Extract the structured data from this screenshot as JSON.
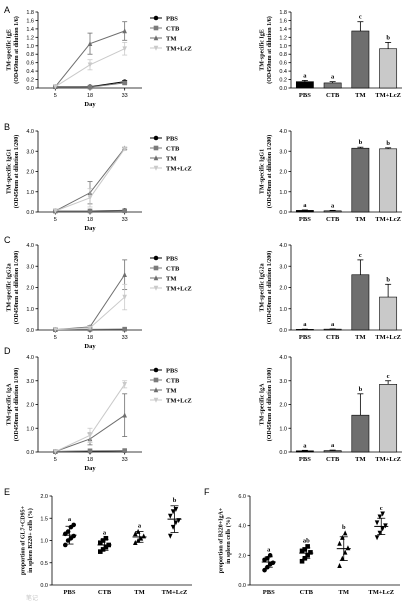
{
  "colors": {
    "PBS": "#000000",
    "CTB": "#7a7a7a",
    "TM": "#6e6e6e",
    "TM+LcZ": "#c9c9c9"
  },
  "watermark": "笔记",
  "chart_data": [
    {
      "id": "A-line",
      "panel": "A",
      "type": "line",
      "x": [
        5,
        18,
        33
      ],
      "xlabel": "Day",
      "ylabel": [
        "TM-specific IgE",
        "(OD450nm at dilution 1/6)"
      ],
      "ylim": [
        0,
        1.8
      ],
      "yticks": [
        "0.0",
        "0.2",
        "0.4",
        "0.6",
        "0.8",
        "1.0",
        "1.2",
        "1.4",
        "1.6",
        "1.8"
      ],
      "legend": "right",
      "series": [
        {
          "name": "PBS",
          "marker": "circle",
          "values": [
            0.03,
            0.03,
            0.15
          ],
          "err": [
            0.01,
            0.01,
            0.03
          ]
        },
        {
          "name": "CTB",
          "marker": "square",
          "values": [
            0.03,
            0.02,
            0.12
          ],
          "err": [
            0.01,
            0.01,
            0.03
          ]
        },
        {
          "name": "TM",
          "marker": "triangle",
          "values": [
            0.03,
            1.05,
            1.35
          ],
          "err": [
            0.01,
            0.25,
            0.22
          ]
        },
        {
          "name": "TM+LcZ",
          "marker": "triangle-down",
          "values": [
            0.03,
            0.55,
            0.93
          ],
          "err": [
            0.01,
            0.12,
            0.15
          ]
        }
      ]
    },
    {
      "id": "A-bar",
      "panel": "A",
      "type": "bar",
      "categories": [
        "PBS",
        "CTB",
        "TM",
        "TM+LcZ"
      ],
      "ylabel": [
        "TM-specific IgE",
        "(OD450nm at dilution 1/6)"
      ],
      "ylim": [
        0,
        1.8
      ],
      "yticks": [
        "0.0",
        "0.2",
        "0.4",
        "0.6",
        "0.8",
        "1.0",
        "1.2",
        "1.4",
        "1.6",
        "1.8"
      ],
      "values": [
        0.15,
        0.12,
        1.35,
        0.93
      ],
      "err": [
        0.03,
        0.03,
        0.22,
        0.15
      ],
      "sig": [
        "a",
        "a",
        "c",
        "b"
      ]
    },
    {
      "id": "B-line",
      "panel": "B",
      "type": "line",
      "x": [
        5,
        18,
        33
      ],
      "xlabel": "Day",
      "ylabel": [
        "TM-specific IgG1",
        "(OD450nm at dilution 1/200)"
      ],
      "ylim": [
        0,
        4
      ],
      "yticks": [
        "0.0",
        "1.0",
        "2.0",
        "3.0",
        "4.0"
      ],
      "legend": "right",
      "series": [
        {
          "name": "PBS",
          "marker": "circle",
          "values": [
            0.05,
            0.05,
            0.08
          ],
          "err": [
            0.02,
            0.02,
            0.02
          ]
        },
        {
          "name": "CTB",
          "marker": "square",
          "values": [
            0.05,
            0.05,
            0.06
          ],
          "err": [
            0.02,
            0.02,
            0.02
          ]
        },
        {
          "name": "TM",
          "marker": "triangle",
          "values": [
            0.05,
            0.95,
            3.15
          ],
          "err": [
            0.02,
            0.55,
            0.05
          ]
        },
        {
          "name": "TM+LcZ",
          "marker": "triangle-down",
          "values": [
            0.05,
            0.7,
            3.12
          ],
          "err": [
            0.02,
            0.45,
            0.05
          ]
        }
      ]
    },
    {
      "id": "B-bar",
      "panel": "B",
      "type": "bar",
      "categories": [
        "PBS",
        "CTB",
        "TM",
        "TM+LcZ"
      ],
      "ylabel": [
        "TM-specific IgG1",
        "(OD450nm at dilution 1/200)"
      ],
      "ylim": [
        0,
        4
      ],
      "yticks": [
        "0.0",
        "1.0",
        "2.0",
        "3.0",
        "4.0"
      ],
      "values": [
        0.08,
        0.06,
        3.15,
        3.12
      ],
      "err": [
        0.02,
        0.02,
        0.05,
        0.05
      ],
      "sig": [
        "a",
        "a",
        "b",
        "b"
      ]
    },
    {
      "id": "C-line",
      "panel": "C",
      "type": "line",
      "x": [
        5,
        18,
        33
      ],
      "xlabel": "Day",
      "ylabel": [
        "TM-specific IgG2a",
        "(OD450nm at dilution 1/200)"
      ],
      "ylim": [
        0,
        4
      ],
      "yticks": [
        "0.0",
        "1.0",
        "2.0",
        "3.0",
        "4.0"
      ],
      "legend": "right",
      "series": [
        {
          "name": "PBS",
          "marker": "circle",
          "values": [
            0.02,
            0.02,
            0.03
          ],
          "err": [
            0.01,
            0.01,
            0.01
          ]
        },
        {
          "name": "CTB",
          "marker": "square",
          "values": [
            0.02,
            0.03,
            0.04
          ],
          "err": [
            0.01,
            0.01,
            0.01
          ]
        },
        {
          "name": "TM",
          "marker": "triangle",
          "values": [
            0.02,
            0.15,
            2.6
          ],
          "err": [
            0.01,
            0.06,
            0.7
          ]
        },
        {
          "name": "TM+LcZ",
          "marker": "triangle-down",
          "values": [
            0.02,
            0.1,
            1.55
          ],
          "err": [
            0.01,
            0.05,
            0.6
          ]
        }
      ]
    },
    {
      "id": "C-bar",
      "panel": "C",
      "type": "bar",
      "categories": [
        "PBS",
        "CTB",
        "TM",
        "TM+LcZ"
      ],
      "ylabel": [
        "TM-specific IgG2a",
        "(OD450nm at dilution 1/200)"
      ],
      "ylim": [
        0,
        4
      ],
      "yticks": [
        "0.0",
        "1.0",
        "2.0",
        "3.0",
        "4.0"
      ],
      "values": [
        0.03,
        0.04,
        2.6,
        1.55
      ],
      "err": [
        0.01,
        0.01,
        0.7,
        0.6
      ],
      "sig": [
        "a",
        "a",
        "c",
        "b"
      ]
    },
    {
      "id": "D-line",
      "panel": "D",
      "type": "line",
      "x": [
        5,
        18,
        33
      ],
      "xlabel": "Day",
      "ylabel": [
        "TM-specific IgA",
        "(OD450nm at dilution 1/100)"
      ],
      "ylim": [
        0,
        4
      ],
      "yticks": [
        "0.0",
        "1.0",
        "2.0",
        "3.0",
        "4.0"
      ],
      "legend": "right",
      "series": [
        {
          "name": "PBS",
          "marker": "circle",
          "values": [
            0.02,
            0.03,
            0.05
          ],
          "err": [
            0.01,
            0.01,
            0.02
          ]
        },
        {
          "name": "CTB",
          "marker": "square",
          "values": [
            0.02,
            0.05,
            0.06
          ],
          "err": [
            0.01,
            0.02,
            0.02
          ]
        },
        {
          "name": "TM",
          "marker": "triangle",
          "values": [
            0.02,
            0.55,
            1.55
          ],
          "err": [
            0.01,
            0.25,
            0.9
          ]
        },
        {
          "name": "TM+LcZ",
          "marker": "triangle-down",
          "values": [
            0.02,
            0.7,
            2.85
          ],
          "err": [
            0.01,
            0.3,
            0.15
          ]
        }
      ]
    },
    {
      "id": "D-bar",
      "panel": "D",
      "type": "bar",
      "categories": [
        "PBS",
        "CTB",
        "TM",
        "TM+LcZ"
      ],
      "ylabel": [
        "TM-specific IgA",
        "(OD450nm at dilution 1/100)"
      ],
      "ylim": [
        0,
        4
      ],
      "yticks": [
        "0.0",
        "1.0",
        "2.0",
        "3.0",
        "4.0"
      ],
      "values": [
        0.05,
        0.06,
        1.55,
        2.85
      ],
      "err": [
        0.02,
        0.02,
        0.9,
        0.15
      ],
      "sig": [
        "a",
        "a",
        "b",
        "c"
      ]
    },
    {
      "id": "E",
      "panel": "E",
      "type": "scatter",
      "categories": [
        "PBS",
        "CTB",
        "TM",
        "TM+LcZ"
      ],
      "ylabel": [
        "proportion of GL7+CD95+",
        "in spleen B220+ cells (%)"
      ],
      "ylim": [
        0,
        2.0
      ],
      "yticks": [
        "0.0",
        "0.5",
        "1.0",
        "1.5",
        "2.0"
      ],
      "points": [
        [
          0.9,
          1.0,
          1.05,
          1.1,
          1.15,
          1.2,
          1.3,
          1.35
        ],
        [
          0.75,
          0.8,
          0.85,
          0.9,
          0.95,
          1.0,
          1.05
        ],
        [
          0.95,
          1.0,
          1.05,
          1.1,
          1.15,
          1.2
        ],
        [
          1.1,
          1.3,
          1.4,
          1.45,
          1.55,
          1.65,
          1.7
        ]
      ],
      "mean": [
        1.12,
        0.9,
        1.08,
        1.48
      ],
      "sd": [
        0.2,
        0.12,
        0.12,
        0.3
      ],
      "sig": [
        "a",
        "a",
        "a",
        "b"
      ]
    },
    {
      "id": "F",
      "panel": "F",
      "type": "scatter",
      "categories": [
        "PBS",
        "CTB",
        "TM",
        "TM+LcZ"
      ],
      "ylabel": [
        "proportion of B220+IgA+",
        "in spleen cells (%)"
      ],
      "ylim": [
        0,
        6.0
      ],
      "yticks": [
        "0.0",
        "2.0",
        "4.0",
        "6.0"
      ],
      "points": [
        [
          1.0,
          1.2,
          1.4,
          1.5,
          1.7,
          1.8,
          2.0
        ],
        [
          1.6,
          1.8,
          2.0,
          2.2,
          2.3,
          2.4,
          2.6
        ],
        [
          1.3,
          1.8,
          2.2,
          2.5,
          2.8,
          3.2,
          3.5
        ],
        [
          3.2,
          3.5,
          3.8,
          4.0,
          4.2,
          4.6,
          4.8
        ]
      ],
      "mean": [
        1.55,
        2.15,
        2.45,
        3.95
      ],
      "sd": [
        0.35,
        0.35,
        0.8,
        0.55
      ],
      "sig": [
        "a",
        "ab",
        "b",
        "c"
      ]
    }
  ]
}
